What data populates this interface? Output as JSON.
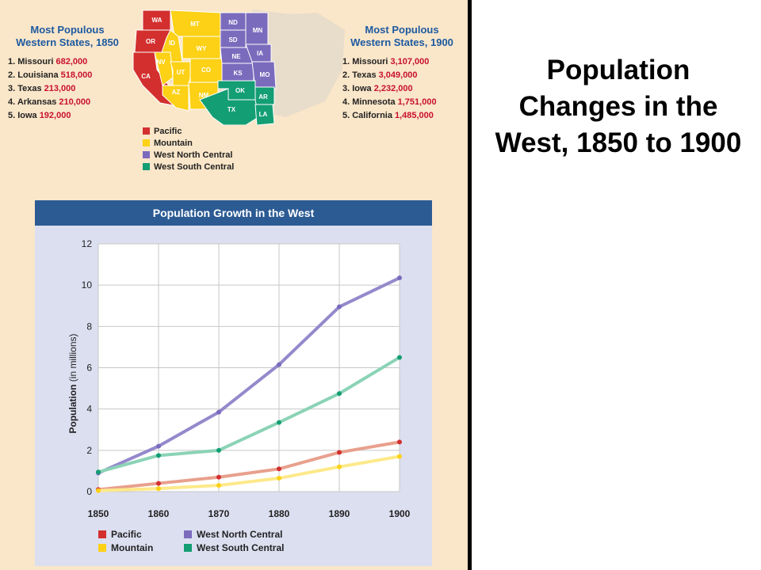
{
  "slide": {
    "title": "Population Changes in the West, 1850 to 1900"
  },
  "colors": {
    "pacific": "#d32f2f",
    "mountain": "#fcd116",
    "west_north_central": "#7b6bbd",
    "west_south_central": "#139e73"
  },
  "rankings": {
    "y1850": {
      "title_line1": "Most Populous",
      "title_line2": "Western States, 1850",
      "rows": [
        {
          "rank": "1. Missouri",
          "value": "682,000"
        },
        {
          "rank": "2. Louisiana",
          "value": "518,000"
        },
        {
          "rank": "3. Texas",
          "value": "213,000"
        },
        {
          "rank": "4. Arkansas",
          "value": "210,000"
        },
        {
          "rank": "5. Iowa",
          "value": "192,000"
        }
      ]
    },
    "y1900": {
      "title_line1": "Most Populous",
      "title_line2": "Western States, 1900",
      "rows": [
        {
          "rank": "1. Missouri",
          "value": "3,107,000"
        },
        {
          "rank": "2. Texas",
          "value": "3,049,000"
        },
        {
          "rank": "3. Iowa",
          "value": "2,232,000"
        },
        {
          "rank": "4. Minnesota",
          "value": "1,751,000"
        },
        {
          "rank": "5. California",
          "value": "1,485,000"
        }
      ]
    }
  },
  "map": {
    "states": [
      {
        "abbr": "WA",
        "region": "pacific"
      },
      {
        "abbr": "OR",
        "region": "pacific"
      },
      {
        "abbr": "CA",
        "region": "pacific"
      },
      {
        "abbr": "MT",
        "region": "mountain"
      },
      {
        "abbr": "ID",
        "region": "mountain"
      },
      {
        "abbr": "WY",
        "region": "mountain"
      },
      {
        "abbr": "NV",
        "region": "mountain"
      },
      {
        "abbr": "UT",
        "region": "mountain"
      },
      {
        "abbr": "CO",
        "region": "mountain"
      },
      {
        "abbr": "AZ",
        "region": "mountain"
      },
      {
        "abbr": "NM",
        "region": "mountain"
      },
      {
        "abbr": "ND",
        "region": "west_north_central"
      },
      {
        "abbr": "MN",
        "region": "west_north_central"
      },
      {
        "abbr": "SD",
        "region": "west_north_central"
      },
      {
        "abbr": "NE",
        "region": "west_north_central"
      },
      {
        "abbr": "IA",
        "region": "west_north_central"
      },
      {
        "abbr": "KS",
        "region": "west_north_central"
      },
      {
        "abbr": "MO",
        "region": "west_north_central"
      },
      {
        "abbr": "OK",
        "region": "west_south_central"
      },
      {
        "abbr": "AR",
        "region": "west_south_central"
      },
      {
        "abbr": "TX",
        "region": "west_south_central"
      },
      {
        "abbr": "LA",
        "region": "west_south_central"
      }
    ],
    "legend": [
      "Pacific",
      "Mountain",
      "West North Central",
      "West South Central"
    ]
  },
  "chart_data": {
    "type": "line",
    "title": "Population Growth in the West",
    "xlabel": "",
    "ylabel_bold": "Population",
    "ylabel_rest": "(in millions)",
    "x": [
      "1850",
      "1860",
      "1870",
      "1880",
      "1890",
      "1900"
    ],
    "ylim": [
      0,
      12
    ],
    "yticks": [
      "0",
      "2",
      "4",
      "6",
      "8",
      "10",
      "12"
    ],
    "grid": true,
    "legend_position": "bottom",
    "series": [
      {
        "name": "Pacific",
        "color_key": "pacific",
        "values": [
          0.1,
          0.4,
          0.7,
          1.1,
          1.9,
          2.4
        ]
      },
      {
        "name": "Mountain",
        "color_key": "mountain",
        "values": [
          0.05,
          0.15,
          0.3,
          0.65,
          1.2,
          1.7
        ]
      },
      {
        "name": "West North Central",
        "color_key": "west_north_central",
        "values": [
          0.9,
          2.2,
          3.85,
          6.15,
          8.95,
          10.35
        ]
      },
      {
        "name": "West South Central",
        "color_key": "west_south_central",
        "values": [
          0.95,
          1.75,
          2.0,
          3.35,
          4.75,
          6.5
        ]
      }
    ]
  }
}
